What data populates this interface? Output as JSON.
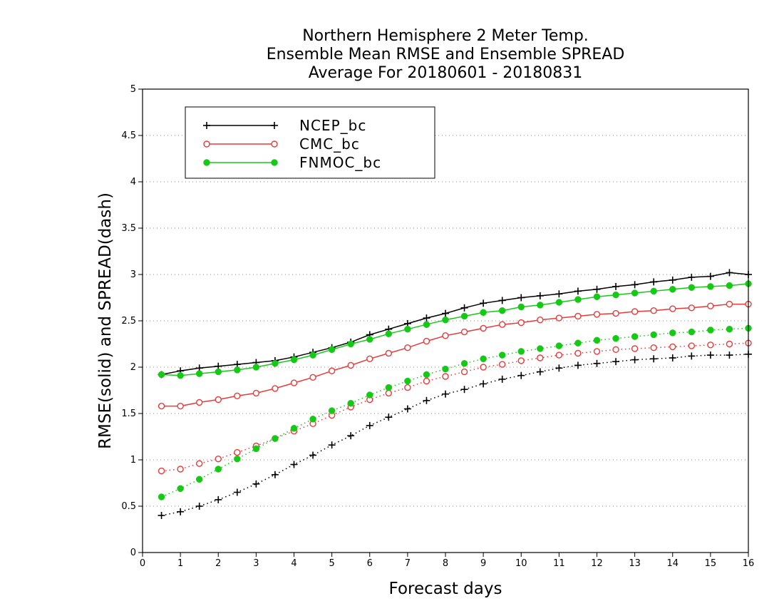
{
  "chart_data": {
    "type": "line",
    "title": [
      "Northern Hemisphere 2 Meter Temp.",
      "Ensemble Mean RMSE and Ensemble SPREAD",
      "Average For 20180601 - 20180831"
    ],
    "xlabel": "Forecast days",
    "ylabel": "RMSE(solid) and SPREAD(dash)",
    "xlim": [
      0,
      16
    ],
    "ylim": [
      0,
      5
    ],
    "xticks": [
      "0",
      "1",
      "2",
      "3",
      "4",
      "5",
      "6",
      "7",
      "8",
      "9",
      "10",
      "11",
      "12",
      "13",
      "14",
      "15",
      "16"
    ],
    "yticks": [
      "0",
      "0.5",
      "1",
      "1.5",
      "2",
      "2.5",
      "3",
      "3.5",
      "4",
      "4.5",
      "5"
    ],
    "grid": "horizontal dotted",
    "legend_position": "top-left",
    "x": [
      0.5,
      1,
      1.5,
      2,
      2.5,
      3,
      3.5,
      4,
      4.5,
      5,
      5.5,
      6,
      6.5,
      7,
      7.5,
      8,
      8.5,
      9,
      9.5,
      10,
      10.5,
      11,
      11.5,
      12,
      12.5,
      13,
      13.5,
      14,
      14.5,
      15,
      15.5,
      16
    ],
    "series": [
      {
        "name": "NCEP_bc",
        "color": "#000000",
        "marker": "plus",
        "rmse": [
          1.92,
          1.96,
          1.99,
          2.01,
          2.03,
          2.05,
          2.07,
          2.11,
          2.16,
          2.21,
          2.27,
          2.35,
          2.41,
          2.47,
          2.53,
          2.58,
          2.64,
          2.69,
          2.72,
          2.75,
          2.77,
          2.79,
          2.82,
          2.84,
          2.87,
          2.89,
          2.92,
          2.94,
          2.97,
          2.98,
          3.02,
          3.0
        ],
        "spread": [
          0.4,
          0.44,
          0.5,
          0.57,
          0.65,
          0.74,
          0.84,
          0.95,
          1.05,
          1.16,
          1.26,
          1.37,
          1.46,
          1.55,
          1.64,
          1.71,
          1.76,
          1.82,
          1.87,
          1.91,
          1.95,
          1.99,
          2.02,
          2.04,
          2.06,
          2.08,
          2.09,
          2.1,
          2.12,
          2.13,
          2.13,
          2.14
        ]
      },
      {
        "name": "CMC_bc",
        "color": "#e83a3a",
        "marker": "open-circle",
        "rmse": [
          1.58,
          1.58,
          1.62,
          1.65,
          1.69,
          1.72,
          1.77,
          1.83,
          1.89,
          1.96,
          2.02,
          2.09,
          2.15,
          2.21,
          2.28,
          2.34,
          2.38,
          2.42,
          2.46,
          2.48,
          2.51,
          2.53,
          2.55,
          2.57,
          2.58,
          2.6,
          2.61,
          2.63,
          2.64,
          2.66,
          2.68,
          2.68
        ],
        "spread": [
          0.88,
          0.9,
          0.96,
          1.01,
          1.08,
          1.15,
          1.23,
          1.31,
          1.39,
          1.48,
          1.57,
          1.65,
          1.72,
          1.78,
          1.85,
          1.9,
          1.95,
          2.0,
          2.03,
          2.07,
          2.1,
          2.13,
          2.15,
          2.17,
          2.19,
          2.2,
          2.21,
          2.22,
          2.23,
          2.24,
          2.25,
          2.26
        ]
      },
      {
        "name": "FNMOC_bc",
        "color": "#17c917",
        "marker": "filled-circle",
        "rmse": [
          1.92,
          1.91,
          1.93,
          1.95,
          1.97,
          2.0,
          2.04,
          2.08,
          2.13,
          2.19,
          2.25,
          2.3,
          2.36,
          2.41,
          2.46,
          2.51,
          2.55,
          2.59,
          2.61,
          2.65,
          2.67,
          2.7,
          2.73,
          2.76,
          2.78,
          2.8,
          2.82,
          2.84,
          2.86,
          2.87,
          2.88,
          2.9
        ],
        "spread": [
          0.6,
          0.69,
          0.79,
          0.9,
          1.01,
          1.12,
          1.23,
          1.34,
          1.44,
          1.53,
          1.61,
          1.7,
          1.78,
          1.85,
          1.92,
          1.98,
          2.04,
          2.09,
          2.13,
          2.17,
          2.2,
          2.23,
          2.26,
          2.29,
          2.31,
          2.33,
          2.35,
          2.37,
          2.38,
          2.4,
          2.41,
          2.42
        ]
      }
    ]
  }
}
